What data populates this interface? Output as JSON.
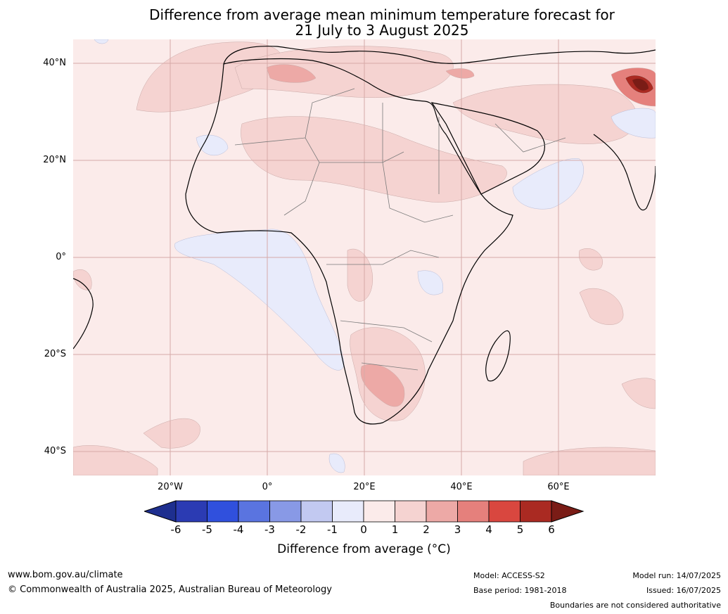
{
  "title_line1": "Difference from average mean minimum temperature forecast for",
  "title_line2": "21 July to 3 August 2025",
  "lat_labels": [
    "40°N",
    "20°N",
    "0°",
    "20°S",
    "40°S"
  ],
  "lon_labels": [
    "20°W",
    "0°",
    "20°E",
    "40°E",
    "60°E"
  ],
  "colorbar": {
    "ticks": [
      "-6",
      "-5",
      "-4",
      "-3",
      "-2",
      "-1",
      "0",
      "1",
      "2",
      "3",
      "4",
      "5",
      "6"
    ],
    "colors": [
      "#1e2f8f",
      "#2b3bb3",
      "#3050dd",
      "#5a74e0",
      "#8899e6",
      "#c2c9f1",
      "#e8ebfb",
      "#fbebea",
      "#f5d3d1",
      "#eda9a6",
      "#e5807c",
      "#d9473f",
      "#aa2a22",
      "#7a1c16"
    ],
    "label": "Difference from average (°C)"
  },
  "footer": {
    "website": "www.bom.gov.au/climate",
    "copyright": "© Commonwealth of Australia 2025, Australian Bureau of Meteorology",
    "model": "Model: ACCESS-S2",
    "base_period": "Base period: 1981-2018",
    "model_run": "Model run: 14/07/2025",
    "issued": "Issued: 16/07/2025",
    "disclaimer": "Boundaries are not considered authoritative"
  }
}
